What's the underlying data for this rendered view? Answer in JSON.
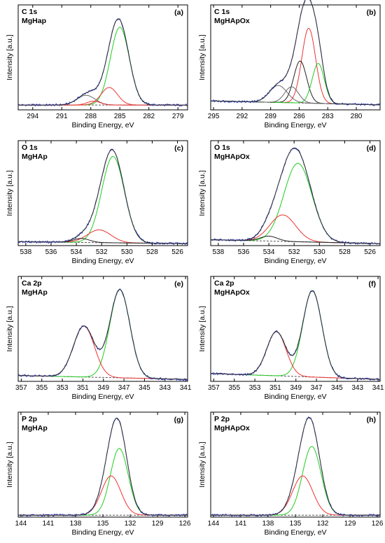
{
  "colors": {
    "raw": "#2233cc",
    "envelope": "#333333",
    "green": "#22cc22",
    "red": "#ee3333",
    "black": "#222222",
    "gray": "#666666",
    "baseline": "#555555"
  },
  "chart_data": [
    {
      "type": "line",
      "id": "a",
      "label": "(a)",
      "title": "C 1s",
      "subtitle": "MgHap",
      "xlabel": "Binding Energy, eV",
      "ylabel": "Intensity [a.u.]",
      "xlim": [
        295.5,
        278
      ],
      "xticks": [
        294,
        291,
        288,
        285,
        282,
        279
      ],
      "ylim": [
        0,
        1.08
      ],
      "baseline": {
        "start": 0.05,
        "end": 0.05
      },
      "series": [
        {
          "name": "",
          "role": "component",
          "color": "green",
          "center": 285.0,
          "fwhm": 2.3,
          "height": 0.8
        },
        {
          "name": "",
          "role": "component",
          "color": "red",
          "center": 286.1,
          "fwhm": 2.0,
          "height": 0.18
        },
        {
          "name": "",
          "role": "component",
          "color": "gray",
          "center": 288.5,
          "fwhm": 2.2,
          "height": 0.1
        },
        {
          "name": "",
          "role": "component",
          "color": "red",
          "center": 287.7,
          "fwhm": 1.6,
          "height": 0.04
        }
      ]
    },
    {
      "type": "line",
      "id": "b",
      "label": "(b)",
      "title": "C 1s",
      "subtitle": "MgHApOx",
      "xlabel": "Binding Energy, eV",
      "ylabel": "Intensity [a.u.]",
      "xlim": [
        295.3,
        277.5
      ],
      "xticks": [
        295,
        292,
        289,
        286,
        283,
        280
      ],
      "ylim": [
        0,
        1.05
      ],
      "baseline": {
        "start": 0.09,
        "end": 0.05
      },
      "series": [
        {
          "name": "",
          "role": "component",
          "color": "red",
          "center": 285.0,
          "fwhm": 1.7,
          "height": 0.75
        },
        {
          "name": "",
          "role": "component",
          "color": "black",
          "center": 285.9,
          "fwhm": 1.6,
          "height": 0.42
        },
        {
          "name": "",
          "role": "component",
          "color": "green",
          "center": 284.0,
          "fwhm": 1.5,
          "height": 0.4
        },
        {
          "name": "",
          "role": "component",
          "color": "gray",
          "center": 286.8,
          "fwhm": 1.7,
          "height": 0.16
        },
        {
          "name": "",
          "role": "component",
          "color": "gray",
          "center": 288.2,
          "fwhm": 2.2,
          "height": 0.17
        }
      ]
    },
    {
      "type": "line",
      "id": "c",
      "label": "(c)",
      "title": "O 1s",
      "subtitle": "MgHAp",
      "xlabel": "Binding Energy, eV",
      "ylabel": "Intensity [a.u.]",
      "xlim": [
        538.6,
        525.2
      ],
      "xticks": [
        538,
        536,
        534,
        532,
        530,
        528,
        526
      ],
      "ylim": [
        0,
        1.07
      ],
      "baseline": {
        "start": 0.04,
        "end": 0.02
      },
      "series": [
        {
          "name": "",
          "role": "component",
          "color": "green",
          "center": 531.1,
          "fwhm": 2.1,
          "height": 0.88
        },
        {
          "name": "",
          "role": "component",
          "color": "red",
          "center": 532.2,
          "fwhm": 2.2,
          "height": 0.13
        },
        {
          "name": "",
          "role": "component",
          "color": "black",
          "center": 533.6,
          "fwhm": 1.5,
          "height": 0.04
        }
      ]
    },
    {
      "type": "line",
      "id": "d",
      "label": "(d)",
      "title": "O 1s",
      "subtitle": "MgHApOx",
      "xlabel": "Binding Energy, eV",
      "ylabel": "Intensity [a.u.]",
      "xlim": [
        538.6,
        525.2
      ],
      "xticks": [
        538,
        536,
        534,
        532,
        530,
        528,
        526
      ],
      "ylim": [
        0,
        1.07
      ],
      "baseline": {
        "start": 0.06,
        "end": 0.02
      },
      "series": [
        {
          "name": "",
          "role": "component",
          "color": "green",
          "center": 531.7,
          "fwhm": 2.6,
          "height": 0.8
        },
        {
          "name": "",
          "role": "component",
          "color": "red",
          "center": 532.9,
          "fwhm": 2.4,
          "height": 0.27
        },
        {
          "name": "",
          "role": "component",
          "color": "black",
          "center": 534.0,
          "fwhm": 1.6,
          "height": 0.05
        }
      ]
    },
    {
      "type": "line",
      "id": "e",
      "label": "(e)",
      "title": "Ca 2p",
      "subtitle": "MgHAp",
      "xlabel": "Binding Energy, eV",
      "ylabel": "Intensity [a.u.]",
      "xlim": [
        357.3,
        340.8
      ],
      "xticks": [
        357,
        355,
        353,
        351,
        349,
        347,
        345,
        343,
        341
      ],
      "ylim": [
        0,
        1.07
      ],
      "baseline": {
        "start": 0.06,
        "end": 0.02
      },
      "series": [
        {
          "name": "",
          "role": "component",
          "color": "green",
          "center": 347.4,
          "fwhm": 2.3,
          "height": 0.9
        },
        {
          "name": "",
          "role": "component",
          "color": "red",
          "center": 350.9,
          "fwhm": 2.4,
          "height": 0.52
        }
      ]
    },
    {
      "type": "line",
      "id": "f",
      "label": "(f)",
      "title": "Ca 2p",
      "subtitle": "MgHApOx",
      "xlabel": "Binding Energy, eV",
      "ylabel": "Intensity [a.u.]",
      "xlim": [
        357.3,
        340.8
      ],
      "xticks": [
        357,
        355,
        353,
        351,
        349,
        347,
        345,
        343,
        341
      ],
      "ylim": [
        0,
        1.07
      ],
      "baseline": {
        "start": 0.08,
        "end": 0.02
      },
      "series": [
        {
          "name": "",
          "role": "component",
          "color": "green",
          "center": 347.4,
          "fwhm": 2.2,
          "height": 0.88
        },
        {
          "name": "",
          "role": "component",
          "color": "red",
          "center": 350.9,
          "fwhm": 2.2,
          "height": 0.45
        }
      ]
    },
    {
      "type": "line",
      "id": "g",
      "label": "(g)",
      "title": "P 2p",
      "subtitle": "MgHAp",
      "xlabel": "Binding Energy, eV",
      "ylabel": "Intensity [a.u.]",
      "xlim": [
        144.3,
        125.7
      ],
      "xticks": [
        144,
        141,
        138,
        135,
        132,
        129,
        126
      ],
      "ylim": [
        0,
        1.07
      ],
      "baseline": {
        "start": 0.02,
        "end": 0.02
      },
      "series": [
        {
          "name": "",
          "role": "component",
          "color": "green",
          "center": 133.2,
          "fwhm": 2.3,
          "height": 0.68
        },
        {
          "name": "",
          "role": "component",
          "color": "red",
          "center": 134.1,
          "fwhm": 2.5,
          "height": 0.4
        }
      ]
    },
    {
      "type": "line",
      "id": "h",
      "label": "(h)",
      "title": "P 2p",
      "subtitle": "MgHApOx",
      "xlabel": "Binding Energy, eV",
      "ylabel": "Intensity [a.u.]",
      "xlim": [
        144.3,
        125.7
      ],
      "xticks": [
        144,
        141,
        138,
        135,
        132,
        129,
        126
      ],
      "ylim": [
        0,
        1.07
      ],
      "baseline": {
        "start": 0.02,
        "end": 0.02
      },
      "series": [
        {
          "name": "",
          "role": "component",
          "color": "green",
          "center": 133.2,
          "fwhm": 2.4,
          "height": 0.7
        },
        {
          "name": "",
          "role": "component",
          "color": "red",
          "center": 134.2,
          "fwhm": 2.6,
          "height": 0.4
        }
      ]
    }
  ]
}
